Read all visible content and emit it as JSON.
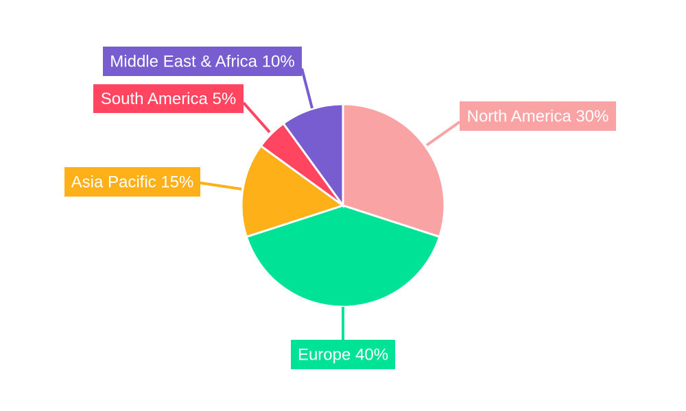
{
  "chart_data": {
    "type": "pie",
    "title": "",
    "start_angle": "12 o'clock, clockwise",
    "legend": "none",
    "slices": [
      {
        "label": "North America 30%",
        "name": "North America",
        "value": 30,
        "color": "#f9a3a4"
      },
      {
        "label": "Europe 40%",
        "name": "Europe",
        "value": 40,
        "color": "#00e396"
      },
      {
        "label": "Asia Pacific 15%",
        "name": "Asia Pacific",
        "value": 15,
        "color": "#feb019"
      },
      {
        "label": "South America 5%",
        "name": "South America",
        "value": 5,
        "color": "#ff4560"
      },
      {
        "label": "Middle East & Africa 10%",
        "name": "Middle East & Africa",
        "value": 10,
        "color": "#775dd0"
      }
    ]
  }
}
